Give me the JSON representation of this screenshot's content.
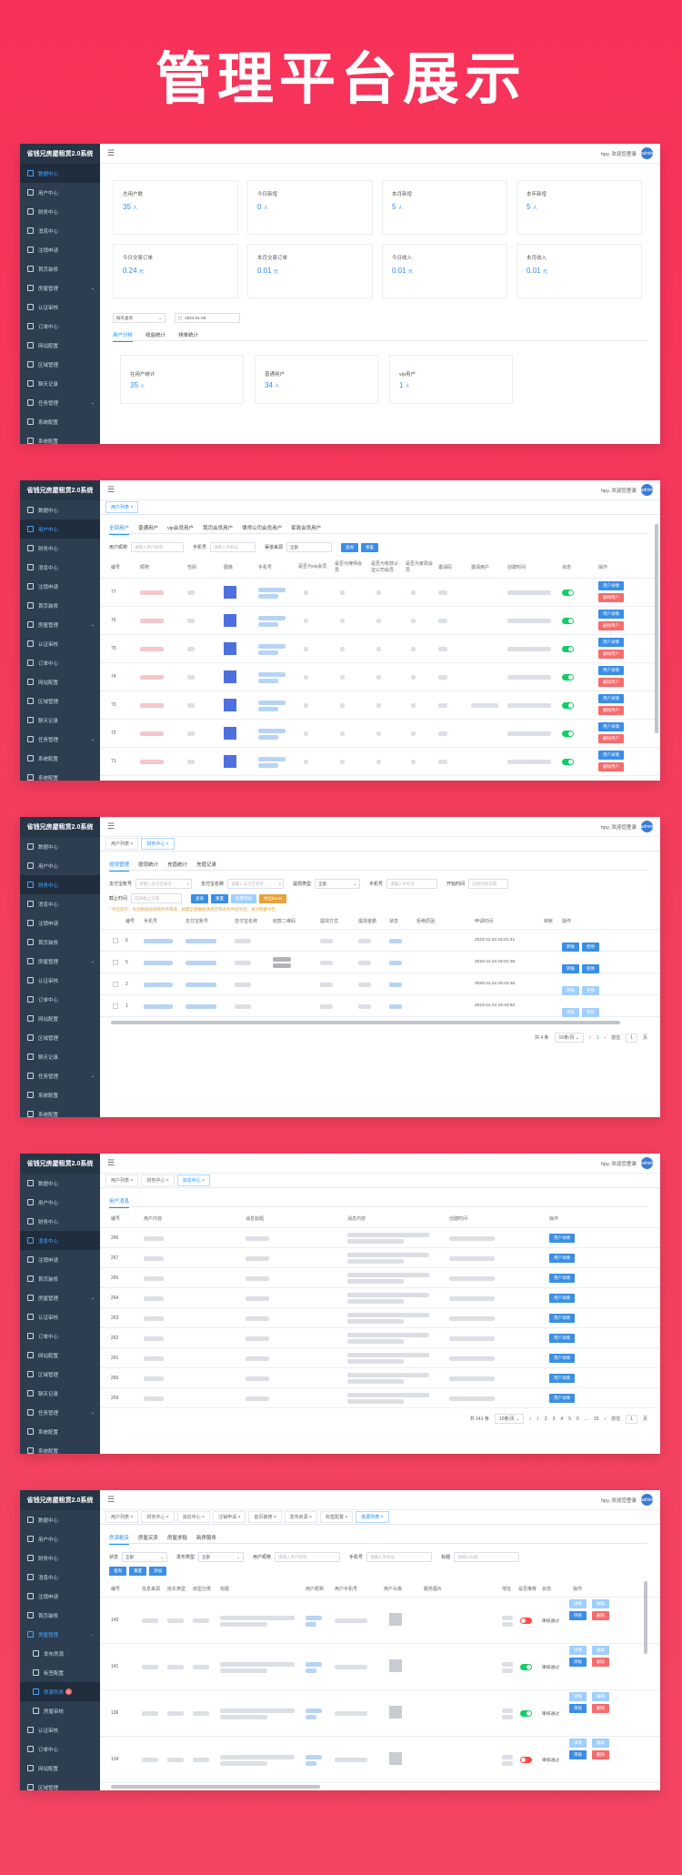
{
  "headline": "管理平台展示",
  "logo": "省钱兄房屋租赁2.0系统",
  "menu": [
    {
      "label": "数据中心",
      "icon": "dashboard-icon"
    },
    {
      "label": "用户中心",
      "icon": "user-icon"
    },
    {
      "label": "财务中心",
      "icon": "wallet-icon"
    },
    {
      "label": "消息中心",
      "icon": "message-icon"
    },
    {
      "label": "注销申请",
      "icon": "logout-icon"
    },
    {
      "label": "首页装修",
      "icon": "home-icon"
    },
    {
      "label": "房屋管理",
      "icon": "building-icon"
    },
    {
      "label": "认证审核",
      "icon": "verify-icon"
    },
    {
      "label": "订单中心",
      "icon": "order-icon"
    },
    {
      "label": "网站配置",
      "icon": "settings-icon"
    },
    {
      "label": "区域管理",
      "icon": "location-icon"
    },
    {
      "label": "聊天记录",
      "icon": "chat-icon"
    },
    {
      "label": "任务管理",
      "icon": "task-icon"
    },
    {
      "label": "系统配置",
      "icon": "system-icon"
    },
    {
      "label": "系统配置",
      "icon": "system-icon"
    }
  ],
  "user": {
    "name": "hpy, 欢迎您登录",
    "avatar": "admin"
  },
  "shot1": {
    "stats": [
      {
        "label": "总用户数",
        "value": "35",
        "unit": "人"
      },
      {
        "label": "今日新增",
        "value": "0",
        "unit": "人"
      },
      {
        "label": "本月新增",
        "value": "5",
        "unit": "人"
      },
      {
        "label": "本年新增",
        "value": "5",
        "unit": "人"
      },
      {
        "label": "今日交易订单",
        "value": "0.24",
        "unit": "元"
      },
      {
        "label": "本月交易订单",
        "value": "0.01",
        "unit": "元"
      },
      {
        "label": "今日收入",
        "value": "0.01",
        "unit": "元"
      },
      {
        "label": "本月收入",
        "value": "0.01",
        "unit": "元"
      }
    ],
    "select_value": "按天查询",
    "date_value": "2024-01-29",
    "tabs": [
      "用户分析",
      "收益统计",
      "排单统计"
    ],
    "cards": [
      {
        "label": "在用户统计",
        "value": "35",
        "unit": "人"
      },
      {
        "label": "普通用户",
        "value": "34",
        "unit": "人"
      },
      {
        "label": "vip用户",
        "value": "1",
        "unit": "人"
      }
    ]
  },
  "shot2": {
    "tags": [
      "用户列表"
    ],
    "tabs": [
      "全部用户",
      "普通用户",
      "vip会员用户",
      "我司会员用户",
      "律师公司会员用户",
      "家政会员用户"
    ],
    "filter_labels": [
      "用户昵称",
      "手机号",
      "渠道来源"
    ],
    "filter_placeholders": [
      "请输入用户昵称",
      "请输入手机号"
    ],
    "filter_select": "全部",
    "buttons": [
      "查询",
      "重置"
    ],
    "headers": [
      "编号",
      "昵称",
      "性别",
      "图像",
      "手机号",
      "是否为vip会员",
      "是否为律师会员",
      "是否为有效认证公司会员",
      "是否为家政会员",
      "邀请码",
      "邀请用户",
      "创建时间",
      "状态",
      "操作"
    ],
    "rows": [
      "77",
      "76",
      "75",
      "74",
      "73",
      "72",
      "71"
    ],
    "op_buttons": [
      "用户详情",
      "删除用户"
    ]
  },
  "shot3": {
    "tags": [
      "用户列表",
      "财务中心"
    ],
    "tabs": [
      "提现管理",
      "提现统计",
      "充值统计",
      "充值记录"
    ],
    "filter_labels": [
      "支付宝账号",
      "支付宝名称",
      "提现类型",
      "手机号",
      "开始时间",
      "截止时间"
    ],
    "filter_placeholders": [
      "请输入支付宝账号",
      "请输入支付宝名称",
      "请输入手机号",
      "选择开始日期",
      "选择截止日期"
    ],
    "filter_select": "全部",
    "buttons": [
      "查询",
      "重置",
      "批量转账",
      "导出Excel"
    ],
    "warning": "* 导出提示：导出数据会按照条件筛选，如需全部数据请清空筛选条件后导出，请勿频繁导出",
    "headers": [
      "编号",
      "手机号",
      "支付宝账号",
      "支付宝名称",
      "收款二维码",
      "提现方式",
      "提现金额",
      "状态",
      "拒绝原因",
      "申请时间",
      "转账",
      "操作"
    ],
    "rows": [
      {
        "id": "6",
        "date": "2023-11-24 15:01:41"
      },
      {
        "id": "5",
        "date": "2023-11-24 15:01:35"
      },
      {
        "id": "2",
        "date": "2023-11-24 15:42:16"
      },
      {
        "id": "1",
        "date": "2023-11-24 15:42:52"
      }
    ],
    "op_buttons": [
      "转账",
      "拒绝"
    ],
    "pager": {
      "total": "共 4 条",
      "size": "10条/页",
      "page": "1",
      "goto": "前往",
      "goto_page": "1",
      "page_suffix": "页"
    }
  },
  "shot4": {
    "tags": [
      "用户列表",
      "财务中心",
      "消息中心"
    ],
    "tabs": [
      "用户消息"
    ],
    "headers": [
      "编号",
      "用户内容",
      "消息标题",
      "消息内容",
      "创建时间",
      "操作"
    ],
    "rows": [
      "266",
      "267",
      "265",
      "264",
      "263",
      "262",
      "261",
      "260",
      "259"
    ],
    "op_button": "用户详情",
    "pager": {
      "total": "共 141 条",
      "size": "10条/页",
      "pages": [
        "1",
        "2",
        "3",
        "4",
        "5",
        "6",
        "...",
        "15"
      ],
      "goto": "前往",
      "goto_page": "1",
      "page_suffix": "页"
    }
  },
  "shot5": {
    "tags": [
      "用户列表",
      "财务中心",
      "消息中心",
      "注销申请",
      "首页装修",
      "发布房源",
      "标签配置",
      "房源列表"
    ],
    "submenu": [
      "发布房源",
      "标签配置",
      "房源列表",
      "房屋审核"
    ],
    "submenu_badge": "6",
    "tabs": [
      "房源租赁",
      "房屋买卖",
      "房屋求租",
      "新房服务"
    ],
    "filter_labels": [
      "状态",
      "发布类型",
      "用户昵称",
      "手机号",
      "标题"
    ],
    "filter_selects": [
      "全部",
      "全部"
    ],
    "filter_placeholders": [
      "请输入用户昵称",
      "请输入手机号",
      "请输入标题"
    ],
    "buttons": [
      "查询",
      "重置",
      "添加"
    ],
    "headers": [
      "编号",
      "信息来源",
      "房东类型",
      "房型分类",
      "标题",
      "用户昵称",
      "用户手机号",
      "用户头像",
      "服务图片",
      "地址",
      "是否推荐",
      "状态",
      "操作"
    ],
    "rows": [
      {
        "id": "143",
        "status": "审核通过",
        "on": false
      },
      {
        "id": "141",
        "status": "审核通过",
        "on": true
      },
      {
        "id": "136",
        "status": "审核通过",
        "on": true
      },
      {
        "id": "134",
        "status": "审核通过",
        "on": false
      }
    ],
    "op_buttons": [
      "详情",
      "编辑",
      "审核",
      "删除"
    ]
  }
}
